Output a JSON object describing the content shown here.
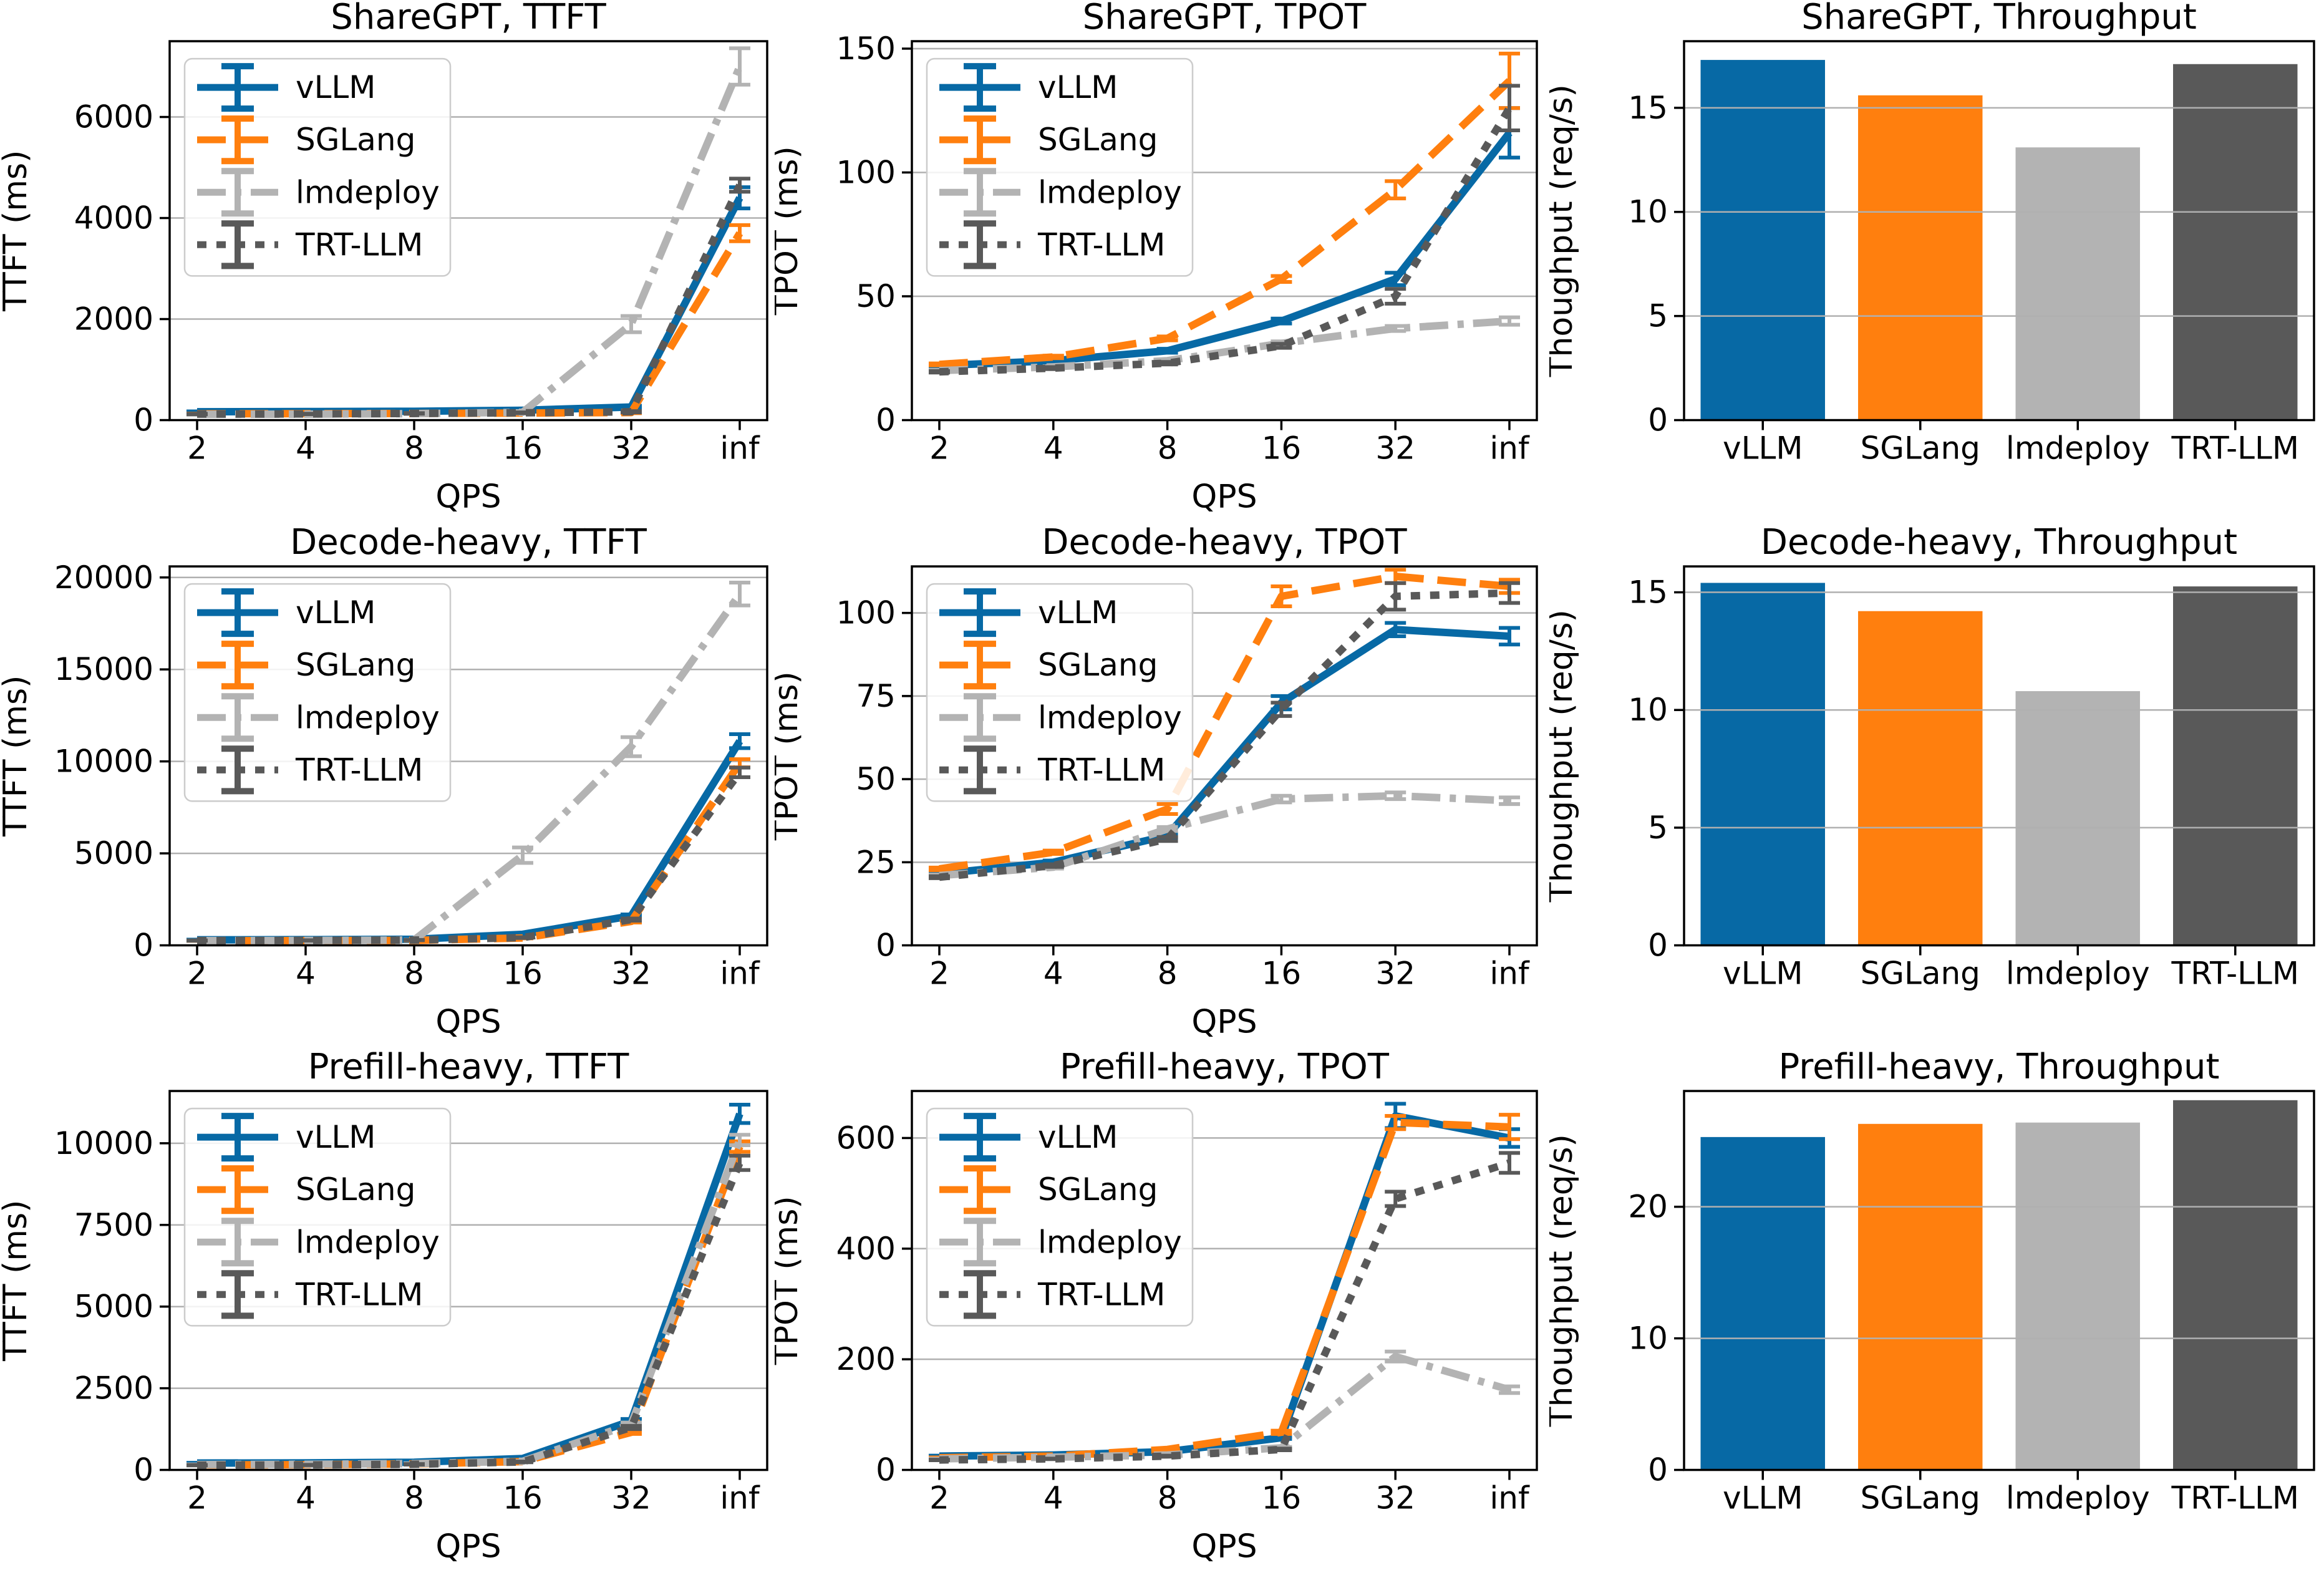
{
  "page": {
    "background": "#ffffff"
  },
  "systems": [
    {
      "name": "vLLM",
      "color": "#0769a5",
      "dash": "solid"
    },
    {
      "name": "SGLang",
      "color": "#ff7f0e",
      "dash": "dashed"
    },
    {
      "name": "lmdeploy",
      "color": "#b3b3b3",
      "dash": "dashdot"
    },
    {
      "name": "TRT-LLM",
      "color": "#595959",
      "dash": "dotted"
    }
  ],
  "grid_color": "#b0b0b0",
  "chart_data": [
    {
      "type": "line",
      "title": "ShareGPT, TTFT",
      "xlabel": "QPS",
      "ylabel": "TTFT (ms)",
      "x_categories": [
        "2",
        "4",
        "8",
        "16",
        "32",
        "inf"
      ],
      "yticks": [
        0,
        2000,
        4000,
        6000
      ],
      "ylim": [
        0,
        7500
      ],
      "grid": true,
      "legend": true,
      "legend_position": "upper-left",
      "series": [
        {
          "name": "vLLM",
          "values": [
            165,
            170,
            175,
            195,
            260,
            4400
          ],
          "err": [
            8,
            8,
            8,
            10,
            25,
            210
          ]
        },
        {
          "name": "SGLang",
          "values": [
            125,
            128,
            132,
            140,
            150,
            3700
          ],
          "err": [
            5,
            5,
            5,
            8,
            12,
            160
          ]
        },
        {
          "name": "lmdeploy",
          "values": [
            115,
            118,
            128,
            155,
            1900,
            7000
          ],
          "err": [
            5,
            5,
            5,
            25,
            160,
            360
          ]
        },
        {
          "name": "TRT-LLM",
          "values": [
            120,
            122,
            132,
            145,
            165,
            4650
          ],
          "err": [
            5,
            5,
            5,
            8,
            12,
            130
          ]
        }
      ]
    },
    {
      "type": "line",
      "title": "ShareGPT, TPOT",
      "xlabel": "QPS",
      "ylabel": "TPOT (ms)",
      "x_categories": [
        "2",
        "4",
        "8",
        "16",
        "32",
        "inf"
      ],
      "yticks": [
        0,
        50,
        100,
        150
      ],
      "ylim": [
        0,
        153
      ],
      "grid": true,
      "legend": true,
      "legend_position": "upper-left",
      "series": [
        {
          "name": "vLLM",
          "values": [
            22,
            24,
            28,
            40,
            57,
            116
          ],
          "err": [
            0.5,
            0.5,
            0.8,
            1,
            2.5,
            10
          ]
        },
        {
          "name": "SGLang",
          "values": [
            22.5,
            25.5,
            33,
            57,
            93,
            137
          ],
          "err": [
            0.4,
            0.5,
            0.8,
            1.2,
            3.5,
            11
          ]
        },
        {
          "name": "lmdeploy",
          "values": [
            20,
            21.5,
            24,
            31,
            37,
            40
          ],
          "err": [
            0.3,
            0.3,
            0.5,
            0.8,
            1,
            1.5
          ]
        },
        {
          "name": "TRT-LLM",
          "values": [
            19.5,
            21,
            23,
            30,
            50,
            126
          ],
          "err": [
            0.3,
            0.4,
            0.5,
            0.8,
            3,
            9
          ]
        }
      ]
    },
    {
      "type": "bar",
      "title": "ShareGPT, Throughput",
      "ylabel": "Thoughput (req/s)",
      "categories": [
        "vLLM",
        "SGLang",
        "lmdeploy",
        "TRT-LLM"
      ],
      "values": [
        17.3,
        15.6,
        13.1,
        17.1
      ],
      "yticks": [
        0,
        5,
        10,
        15
      ],
      "ylim": [
        0,
        18.2
      ],
      "grid": true
    },
    {
      "type": "line",
      "title": "Decode-heavy, TTFT",
      "xlabel": "QPS",
      "ylabel": "TTFT (ms)",
      "x_categories": [
        "2",
        "4",
        "8",
        "16",
        "32",
        "inf"
      ],
      "yticks": [
        0,
        5000,
        10000,
        15000,
        20000
      ],
      "ylim": [
        0,
        20600
      ],
      "grid": true,
      "legend": true,
      "legend_position": "upper-left",
      "series": [
        {
          "name": "vLLM",
          "values": [
            300,
            310,
            330,
            600,
            1600,
            11100
          ],
          "err": [
            10,
            10,
            12,
            30,
            80,
            380
          ]
        },
        {
          "name": "SGLang",
          "values": [
            250,
            258,
            268,
            400,
            1300,
            9900
          ],
          "err": [
            8,
            8,
            10,
            20,
            60,
            220
          ]
        },
        {
          "name": "lmdeploy",
          "values": [
            255,
            265,
            290,
            4900,
            10800,
            19100
          ],
          "err": [
            8,
            10,
            15,
            420,
            520,
            620
          ]
        },
        {
          "name": "TRT-LLM",
          "values": [
            260,
            268,
            285,
            420,
            1400,
            9400
          ],
          "err": [
            8,
            8,
            10,
            20,
            60,
            260
          ]
        }
      ]
    },
    {
      "type": "line",
      "title": "Decode-heavy, TPOT",
      "xlabel": "QPS",
      "ylabel": "TPOT (ms)",
      "x_categories": [
        "2",
        "4",
        "8",
        "16",
        "32",
        "inf"
      ],
      "yticks": [
        0,
        25,
        50,
        75,
        100
      ],
      "ylim": [
        0,
        114
      ],
      "grid": true,
      "legend": true,
      "legend_position": "upper-left",
      "series": [
        {
          "name": "vLLM",
          "values": [
            21.5,
            25,
            33,
            73,
            95,
            93
          ],
          "err": [
            0.8,
            0.5,
            0.6,
            2,
            2,
            2.5
          ]
        },
        {
          "name": "SGLang",
          "values": [
            23,
            28,
            41,
            105,
            111,
            108
          ],
          "err": [
            0.4,
            0.5,
            1.5,
            3,
            2,
            2
          ]
        },
        {
          "name": "lmdeploy",
          "values": [
            21,
            23.5,
            35,
            44,
            45,
            43.5
          ],
          "err": [
            0.3,
            0.4,
            0.6,
            1,
            1,
            1
          ]
        },
        {
          "name": "TRT-LLM",
          "values": [
            20.5,
            24,
            32,
            71,
            105,
            106
          ],
          "err": [
            0.3,
            0.4,
            0.6,
            2,
            4,
            3
          ]
        }
      ]
    },
    {
      "type": "bar",
      "title": "Decode-heavy, Throughput",
      "ylabel": "Thoughput (req/s)",
      "categories": [
        "vLLM",
        "SGLang",
        "lmdeploy",
        "TRT-LLM"
      ],
      "values": [
        15.4,
        14.2,
        10.8,
        15.25
      ],
      "yticks": [
        0,
        5,
        10,
        15
      ],
      "ylim": [
        0,
        16.1
      ],
      "grid": true
    },
    {
      "type": "line",
      "title": "Prefill-heavy, TTFT",
      "xlabel": "QPS",
      "ylabel": "TTFT (ms)",
      "x_categories": [
        "2",
        "4",
        "8",
        "16",
        "32",
        "inf"
      ],
      "yticks": [
        0,
        2500,
        5000,
        7500,
        10000
      ],
      "ylim": [
        0,
        11600
      ],
      "grid": true,
      "legend": true,
      "legend_position": "upper-left",
      "series": [
        {
          "name": "vLLM",
          "values": [
            210,
            215,
            235,
            350,
            1500,
            10900
          ],
          "err": [
            8,
            8,
            10,
            15,
            60,
            280
          ]
        },
        {
          "name": "SGLang",
          "values": [
            155,
            160,
            185,
            255,
            1150,
            9900
          ],
          "err": [
            5,
            5,
            8,
            10,
            50,
            160
          ]
        },
        {
          "name": "lmdeploy",
          "values": [
            165,
            172,
            195,
            265,
            1400,
            10100
          ],
          "err": [
            5,
            5,
            8,
            10,
            50,
            160
          ]
        },
        {
          "name": "TRT-LLM",
          "values": [
            145,
            152,
            172,
            245,
            1300,
            9400
          ],
          "err": [
            5,
            5,
            8,
            10,
            50,
            220
          ]
        }
      ]
    },
    {
      "type": "line",
      "title": "Prefill-heavy, TPOT",
      "xlabel": "QPS",
      "ylabel": "TPOT (ms)",
      "x_categories": [
        "2",
        "4",
        "8",
        "16",
        "32",
        "inf"
      ],
      "yticks": [
        0,
        200,
        400,
        600
      ],
      "ylim": [
        0,
        685
      ],
      "grid": true,
      "legend": true,
      "legend_position": "upper-left",
      "series": [
        {
          "name": "vLLM",
          "values": [
            25,
            27,
            33,
            58,
            640,
            600
          ],
          "err": [
            0.8,
            0.8,
            1,
            2,
            22,
            16
          ]
        },
        {
          "name": "SGLang",
          "values": [
            22,
            25,
            37,
            68,
            628,
            620
          ],
          "err": [
            0.6,
            0.8,
            1.5,
            3,
            12,
            22
          ]
        },
        {
          "name": "lmdeploy",
          "values": [
            20,
            23,
            27,
            40,
            205,
            145
          ],
          "err": [
            0.5,
            0.5,
            0.8,
            1.5,
            9,
            6
          ]
        },
        {
          "name": "TRT-LLM",
          "values": [
            18,
            20,
            25,
            37,
            490,
            555
          ],
          "err": [
            0.5,
            0.5,
            0.8,
            1.5,
            13,
            18
          ]
        }
      ]
    },
    {
      "type": "bar",
      "title": "Prefill-heavy, Throughput",
      "ylabel": "Thoughput (req/s)",
      "categories": [
        "vLLM",
        "SGLang",
        "lmdeploy",
        "TRT-LLM"
      ],
      "values": [
        25.3,
        26.3,
        26.4,
        28.1
      ],
      "yticks": [
        0,
        10,
        20
      ],
      "ylim": [
        0,
        28.8
      ],
      "grid": true
    }
  ]
}
